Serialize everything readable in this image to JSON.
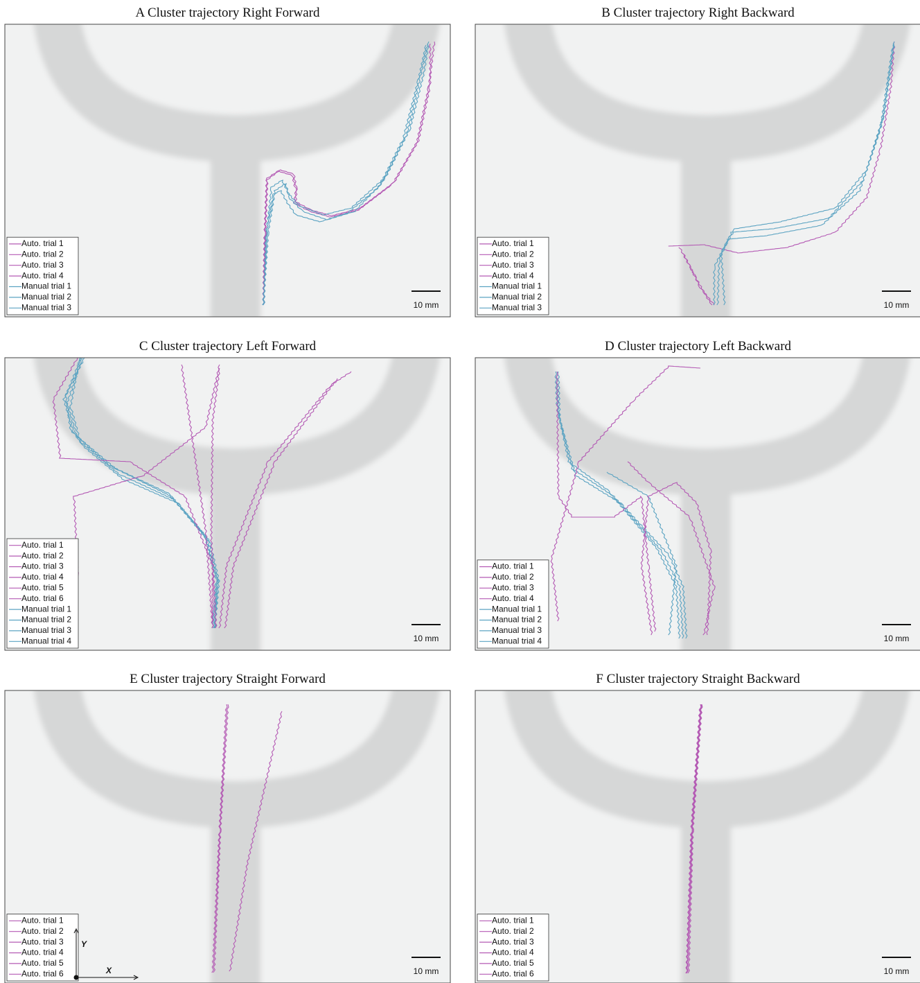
{
  "panels": [
    {
      "title": "A Cluster trajectory Right Forward",
      "scale": "10 mm",
      "legend": [
        {
          "name": "Auto. trial 1",
          "color": "#b45ab4"
        },
        {
          "name": "Auto. trial 2",
          "color": "#b45ab4"
        },
        {
          "name": "Auto. trial 3",
          "color": "#b45ab4"
        },
        {
          "name": "Auto. trial 4",
          "color": "#b45ab4"
        },
        {
          "name": "Manual trial 1",
          "color": "#5ba3c2"
        },
        {
          "name": "Manual trial 2",
          "color": "#5ba3c2"
        },
        {
          "name": "Manual trial 3",
          "color": "#5ba3c2"
        }
      ]
    },
    {
      "title": "B Cluster trajectory Right Backward",
      "scale": "10 mm",
      "legend": [
        {
          "name": "Auto. trial 1",
          "color": "#b45ab4"
        },
        {
          "name": "Auto. trial 2",
          "color": "#b45ab4"
        },
        {
          "name": "Auto. trial 3",
          "color": "#b45ab4"
        },
        {
          "name": "Auto. trial 4",
          "color": "#b45ab4"
        },
        {
          "name": "Manual trial 1",
          "color": "#5ba3c2"
        },
        {
          "name": "Manual trial 2",
          "color": "#5ba3c2"
        },
        {
          "name": "Manual trial 3",
          "color": "#5ba3c2"
        }
      ]
    },
    {
      "title": "C Cluster trajectory Left Forward",
      "scale": "10 mm",
      "legend": [
        {
          "name": "Auto. trial 1",
          "color": "#b45ab4"
        },
        {
          "name": "Auto. trial 2",
          "color": "#b45ab4"
        },
        {
          "name": "Auto. trial 3",
          "color": "#b45ab4"
        },
        {
          "name": "Auto. trial 4",
          "color": "#b45ab4"
        },
        {
          "name": "Auto. trial 5",
          "color": "#b45ab4"
        },
        {
          "name": "Auto. trial 6",
          "color": "#b45ab4"
        },
        {
          "name": "Manual trial 1",
          "color": "#5ba3c2"
        },
        {
          "name": "Manual trial 2",
          "color": "#5ba3c2"
        },
        {
          "name": "Manual trial 3",
          "color": "#5ba3c2"
        },
        {
          "name": "Manual trial 4",
          "color": "#5ba3c2"
        }
      ]
    },
    {
      "title": "D Cluster trajectory Left Backward",
      "scale": "10 mm",
      "legend": [
        {
          "name": "Auto. trial 1",
          "color": "#b45ab4"
        },
        {
          "name": "Auto. trial 2",
          "color": "#b45ab4"
        },
        {
          "name": "Auto. trial 3",
          "color": "#b45ab4"
        },
        {
          "name": "Auto. trial 4",
          "color": "#b45ab4"
        },
        {
          "name": "Manual trial 1",
          "color": "#5ba3c2"
        },
        {
          "name": "Manual trial 2",
          "color": "#5ba3c2"
        },
        {
          "name": "Manual trial 3",
          "color": "#5ba3c2"
        },
        {
          "name": "Manual trial 4",
          "color": "#5ba3c2"
        }
      ]
    },
    {
      "title": "E Cluster trajectory Straight Forward",
      "scale": "10 mm",
      "axis_x": "X",
      "axis_y": "Y",
      "legend": [
        {
          "name": "Auto. trial 1",
          "color": "#b45ab4"
        },
        {
          "name": "Auto. trial 2",
          "color": "#b45ab4"
        },
        {
          "name": "Auto. trial 3",
          "color": "#b45ab4"
        },
        {
          "name": "Auto. trial 4",
          "color": "#b45ab4"
        },
        {
          "name": "Auto. trial 5",
          "color": "#b45ab4"
        },
        {
          "name": "Auto. trial 6",
          "color": "#b45ab4"
        }
      ]
    },
    {
      "title": "F Cluster trajectory Straight Backward",
      "scale": "10 mm",
      "legend": [
        {
          "name": "Auto. trial 1",
          "color": "#b45ab4"
        },
        {
          "name": "Auto. trial 2",
          "color": "#b45ab4"
        },
        {
          "name": "Auto. trial 3",
          "color": "#b45ab4"
        },
        {
          "name": "Auto. trial 4",
          "color": "#b45ab4"
        },
        {
          "name": "Auto. trial 5",
          "color": "#b45ab4"
        },
        {
          "name": "Auto. trial 6",
          "color": "#b45ab4"
        }
      ]
    }
  ]
}
